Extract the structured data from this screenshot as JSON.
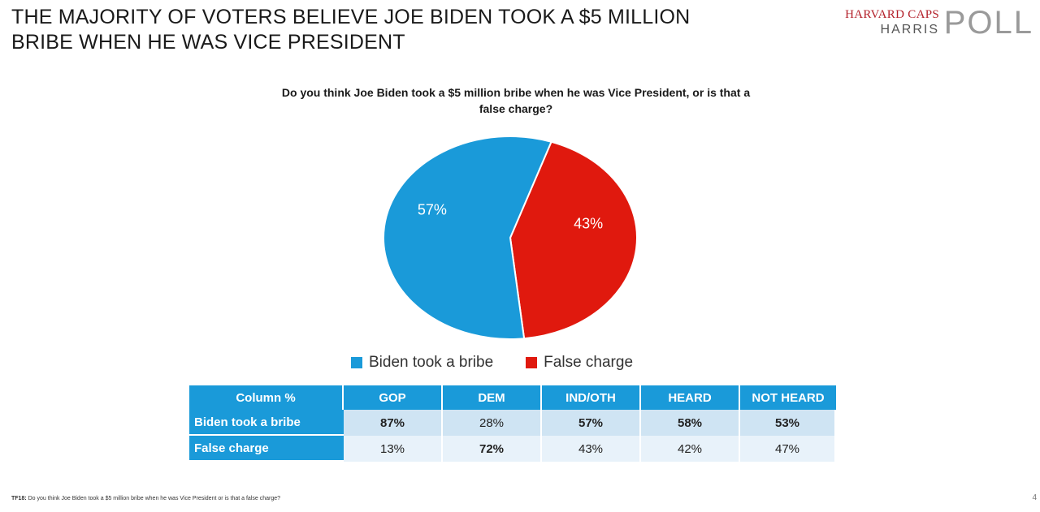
{
  "title": "THE MAJORITY OF VOTERS BELIEVE JOE BIDEN TOOK A $5 MILLION BRIBE WHEN HE WAS VICE PRESIDENT",
  "logo": {
    "line1": "HARVARD CAPS",
    "line2": "HARRIS",
    "line3": "POLL"
  },
  "colors": {
    "blue": "#1a9ad9",
    "red": "#e0190e"
  },
  "chart_data": {
    "type": "pie",
    "title": "Do you think Joe Biden took a $5 million bribe when he was Vice President, or is that a false charge?",
    "slices": [
      {
        "label": "Biden took a bribe",
        "value": 57,
        "display": "57%",
        "color": "#1a9ad9"
      },
      {
        "label": "False charge",
        "value": 43,
        "display": "43%",
        "color": "#e0190e"
      }
    ],
    "legend_position": "bottom"
  },
  "table": {
    "headers": [
      "Column %",
      "GOP",
      "DEM",
      "IND/OTH",
      "HEARD",
      "NOT HEARD"
    ],
    "rows": [
      {
        "label": "Biden took a bribe",
        "values": [
          "87%",
          "28%",
          "57%",
          "58%",
          "53%"
        ],
        "bold": [
          true,
          false,
          true,
          true,
          true
        ]
      },
      {
        "label": "False charge",
        "values": [
          "13%",
          "72%",
          "43%",
          "42%",
          "47%"
        ],
        "bold": [
          false,
          true,
          false,
          false,
          false
        ]
      }
    ]
  },
  "footnote": {
    "code": "TF18:",
    "text": "Do you think Joe Biden took a $5 million bribe when he was Vice President or is that a false charge?"
  },
  "page_number": "4"
}
